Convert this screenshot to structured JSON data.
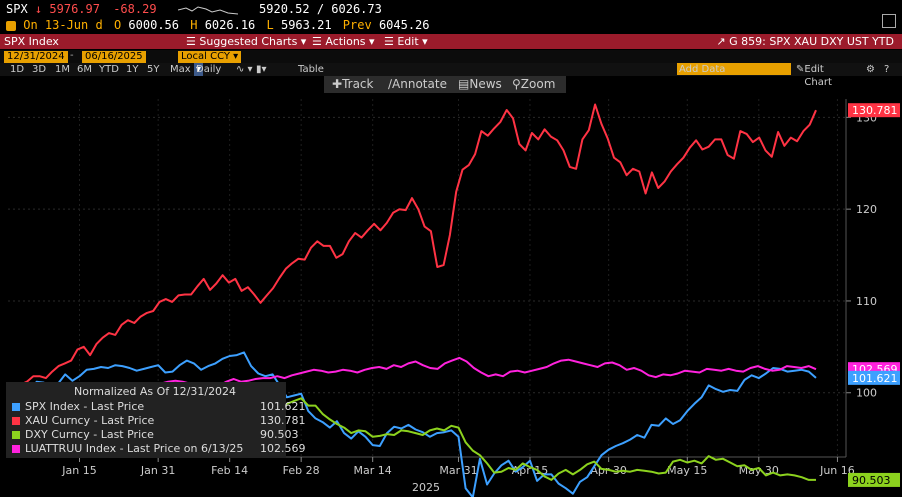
{
  "ticker": {
    "symbol": "SPX",
    "last": "5976.97",
    "change": "-68.29",
    "range": "5920.52 / 6026.73",
    "on_date": "On 13-Jun d",
    "open_label": "O",
    "open": "6000.56",
    "high_label": "H",
    "high": "6026.16",
    "low_label": "L",
    "low": "5963.21",
    "prev_label": "Prev",
    "prev": "6045.26"
  },
  "menu": {
    "security": "SPX Index",
    "suggested": "Suggested Charts",
    "actions": "Actions",
    "edit": "Edit",
    "page_title": "G 859: SPX XAU DXY UST YTD"
  },
  "controls": {
    "start_date": "12/31/2024",
    "end_date": "06/16/2025",
    "currency": "Local CCY",
    "timeframes": [
      "1D",
      "3D",
      "1M",
      "6M",
      "YTD",
      "1Y",
      "5Y",
      "Max"
    ],
    "frequency": "Daily",
    "table": "Table",
    "add_data": "Add Data",
    "edit_chart": "Edit Chart",
    "track": "Track",
    "annotate": "Annotate",
    "news": "News",
    "zoom": "Zoom"
  },
  "chart_data": {
    "type": "line",
    "title": "",
    "xlabel": "2025",
    "ylabel": "",
    "ylim": [
      93,
      132
    ],
    "y_ticks": [
      100,
      110,
      120,
      130
    ],
    "x_tick_labels": [
      "Jan 15",
      "Jan 31",
      "Feb 14",
      "Feb 28",
      "Mar 14",
      "Mar 31",
      "Apr 15",
      "Apr 30",
      "May 15",
      "May 30",
      "Jun 16"
    ],
    "x_tick_index": [
      10,
      21,
      31,
      41,
      51,
      63,
      73,
      84,
      95,
      105,
      116
    ],
    "last_index": 113,
    "legend_header": "Normalized As Of 12/31/2024",
    "series": [
      {
        "name": "SPX Index - Last Price",
        "color": "#3da0ff",
        "last": "101.621",
        "values": [
          100.0,
          100.4,
          100.6,
          99.8,
          101.2,
          101.1,
          100.1,
          101.0,
          102.0,
          101.3,
          101.8,
          102.5,
          102.6,
          102.8,
          102.7,
          103.0,
          102.9,
          102.7,
          102.4,
          102.6,
          102.8,
          103.0,
          102.2,
          102.3,
          103.0,
          103.5,
          103.2,
          102.5,
          102.9,
          103.2,
          103.7,
          104.0,
          104.1,
          104.4,
          102.9,
          102.1,
          101.8,
          102.0,
          100.8,
          99.5,
          99.7,
          99.9,
          98.0,
          97.2,
          96.8,
          96.2,
          96.9,
          95.6,
          95.0,
          95.8,
          95.2,
          94.3,
          94.2,
          95.6,
          96.3,
          96.1,
          96.5,
          96.0,
          95.7,
          95.2,
          95.6,
          95.7,
          95.9,
          95.2,
          89.6,
          88.6,
          92.8,
          90.0,
          91.2,
          92.1,
          92.6,
          91.4,
          91.9,
          92.6,
          90.4,
          91.1,
          91.1,
          90.1,
          89.6,
          89.0,
          90.3,
          90.8,
          92.0,
          93.2,
          93.8,
          94.2,
          94.5,
          94.9,
          95.4,
          95.1,
          96.5,
          96.4,
          97.2,
          96.6,
          97.0,
          98.0,
          98.8,
          99.5,
          100.8,
          100.4,
          100.1,
          100.3,
          100.2,
          101.4,
          101.9,
          101.6,
          102.1,
          102.7,
          102.6,
          102.3,
          102.4,
          102.5,
          102.3,
          101.621
        ]
      },
      {
        "name": "XAU Curncy - Last Price",
        "color": "#ff3344",
        "last": "130.781",
        "values": [
          100.0,
          100.5,
          100.9,
          101.2,
          101.8,
          101.8,
          101.6,
          102.3,
          102.9,
          103.2,
          103.5,
          104.7,
          105.0,
          104.1,
          105.3,
          106.0,
          106.5,
          106.3,
          107.4,
          107.9,
          107.6,
          108.3,
          108.7,
          108.9,
          109.9,
          110.2,
          109.9,
          110.6,
          110.7,
          110.7,
          111.6,
          112.4,
          111.2,
          111.9,
          112.8,
          112.0,
          112.4,
          111.1,
          111.5,
          110.7,
          109.8,
          110.6,
          111.4,
          112.5,
          113.5,
          114.1,
          114.6,
          114.5,
          115.8,
          116.5,
          116.0,
          116.0,
          114.7,
          115.1,
          116.5,
          117.4,
          116.9,
          117.7,
          118.4,
          117.7,
          118.5,
          119.6,
          120.0,
          119.9,
          121.2,
          120.0,
          118.1,
          117.6,
          113.7,
          113.9,
          117.2,
          121.9,
          124.3,
          124.8,
          126.0,
          128.5,
          128.0,
          128.8,
          129.5,
          130.8,
          129.9,
          127.1,
          126.4,
          128.3,
          127.6,
          128.7,
          127.9,
          127.5,
          126.4,
          124.6,
          124.4,
          127.6,
          128.6,
          131.4,
          129.3,
          127.7,
          125.6,
          125.1,
          123.7,
          124.4,
          124.1,
          121.7,
          124.0,
          122.3,
          123.0,
          124.1,
          124.9,
          125.6,
          126.7,
          127.5,
          126.5,
          126.8,
          127.6,
          127.6,
          125.9,
          125.5,
          128.5,
          128.2,
          127.3,
          127.8,
          126.4,
          125.7,
          128.4,
          126.9,
          127.8,
          127.4,
          128.5,
          129.2,
          130.781
        ]
      },
      {
        "name": "DXY Curncy - Last Price",
        "color": "#8cd21e",
        "last": "90.503",
        "values": [
          100.0,
          100.1,
          100.5,
          100.4,
          100.8,
          100.3,
          100.2,
          100.0,
          99.9,
          100.2,
          100.0,
          100.1,
          100.2,
          99.6,
          99.4,
          99.4,
          99.4,
          99.3,
          98.9,
          99.1,
          99.6,
          99.9,
          99.5,
          99.3,
          99.7,
          99.6,
          99.0,
          99.1,
          99.2,
          99.0,
          98.5,
          98.2,
          97.9,
          98.2,
          98.6,
          98.5,
          98.4,
          98.5,
          98.1,
          98.8,
          99.1,
          99.4,
          98.6,
          98.6,
          97.7,
          97.1,
          96.6,
          96.2,
          95.6,
          95.9,
          95.8,
          95.2,
          95.3,
          95.5,
          95.4,
          95.9,
          95.8,
          95.6,
          95.4,
          95.9,
          96.1,
          95.9,
          96.4,
          96.2,
          94.6,
          93.7,
          93.2,
          92.3,
          91.3,
          91.4,
          91.8,
          91.6,
          92.3,
          91.9,
          91.6,
          90.9,
          90.5,
          91.2,
          91.6,
          91.1,
          91.6,
          92.2,
          92.5,
          91.7,
          91.6,
          91.4,
          91.5,
          91.4,
          91.6,
          91.5,
          91.4,
          91.2,
          91.3,
          92.5,
          92.7,
          92.4,
          92.6,
          92.3,
          93.1,
          92.7,
          92.8,
          92.4,
          92.0,
          92.1,
          91.6,
          91.8,
          91.0,
          91.3,
          91.0,
          91.1,
          91.0,
          90.8,
          90.5,
          90.503
        ]
      },
      {
        "name": "LUATTRUU Index - Last Price on 6/13/25",
        "color": "#ff22dd",
        "last": "102.569",
        "values": [
          100.0,
          99.9,
          99.7,
          99.4,
          99.5,
          99.8,
          99.7,
          99.5,
          99.9,
          100.3,
          100.2,
          100.4,
          100.3,
          100.7,
          100.6,
          100.8,
          100.8,
          100.7,
          100.6,
          100.5,
          100.8,
          101.0,
          101.2,
          101.3,
          101.2,
          101.0,
          100.8,
          100.5,
          100.7,
          100.8,
          101.2,
          101.5,
          101.2,
          101.3,
          101.5,
          101.6,
          101.6,
          101.8,
          101.6,
          101.9,
          102.1,
          102.3,
          102.5,
          102.4,
          102.2,
          102.3,
          102.5,
          102.4,
          102.2,
          102.5,
          102.7,
          102.8,
          102.6,
          103.0,
          102.8,
          103.2,
          103.4,
          103.0,
          102.7,
          102.6,
          103.2,
          103.5,
          103.8,
          103.4,
          102.7,
          102.2,
          101.8,
          102.0,
          101.8,
          102.3,
          102.4,
          102.2,
          102.4,
          102.6,
          102.8,
          103.2,
          103.5,
          103.6,
          103.4,
          103.2,
          103.0,
          102.8,
          103.2,
          103.3,
          103.0,
          102.5,
          102.7,
          102.4,
          101.9,
          101.7,
          102.0,
          101.9,
          102.1,
          102.4,
          102.3,
          102.2,
          102.6,
          102.5,
          102.4,
          102.6,
          102.4,
          102.3,
          102.7,
          102.9,
          102.6,
          102.4,
          102.5,
          102.9,
          102.8,
          102.7,
          102.9,
          102.569
        ]
      }
    ],
    "end_labels": [
      {
        "text": "130.781",
        "bg": "#ff3344",
        "fg": "#fff",
        "value": 130.781
      },
      {
        "text": "102.569",
        "bg": "#ff22dd",
        "fg": "#fff",
        "value": 102.569
      },
      {
        "text": "101.621",
        "bg": "#3da0ff",
        "fg": "#fff",
        "value": 101.621
      },
      {
        "text": "90.503",
        "bg": "#8cd21e",
        "fg": "#000",
        "value": 90.503
      }
    ]
  }
}
